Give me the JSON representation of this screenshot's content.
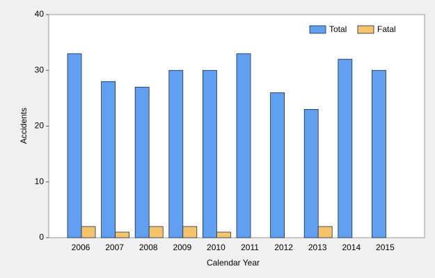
{
  "chart_data": {
    "type": "bar",
    "x_label": "Calendar Year",
    "y_label": "Accidents",
    "categories": [
      "2006",
      "2007",
      "2008",
      "2009",
      "2010",
      "2011",
      "2012",
      "2013",
      "2014",
      "2015"
    ],
    "series": [
      {
        "name": "Total",
        "color": "#619ff0",
        "values": [
          33,
          28,
          27,
          30,
          30,
          33,
          26,
          23,
          32,
          30
        ]
      },
      {
        "name": "Fatal",
        "color": "#f5c36a",
        "values": [
          2,
          1,
          2,
          2,
          1,
          0,
          0,
          2,
          0,
          0
        ]
      }
    ],
    "ylim": [
      0,
      40
    ],
    "yticks": [
      0,
      10,
      20,
      30,
      40
    ],
    "grid": false,
    "legend": "top-right"
  }
}
